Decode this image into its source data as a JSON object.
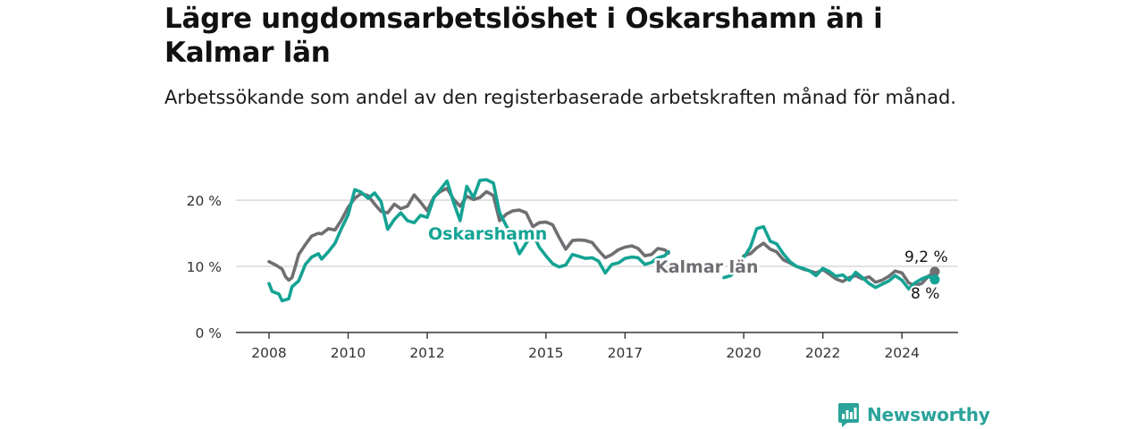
{
  "header": {
    "title": "Lägre ungdomsarbetslöshet i Oskarshamn än i Kalmar län",
    "subtitle": "Arbetssökande som andel av den registerbaserade arbetskraften månad för månad."
  },
  "brand": {
    "name": "Newsworthy",
    "icon": "newsworthy-bar-chart-icon",
    "color": "#2aa39a"
  },
  "chart_data": {
    "type": "line",
    "title": "Lägre ungdomsarbetslöshet i Oskarshamn än i Kalmar län",
    "subtitle": "Arbetssökande som andel av den registerbaserade arbetskraften månad för månad.",
    "xlabel": "",
    "ylabel": "",
    "x_range": [
      2008,
      2024.9
    ],
    "ylim": [
      0,
      23
    ],
    "y_ticks": [
      {
        "value": 0,
        "label": "0 %"
      },
      {
        "value": 10,
        "label": "10 %"
      },
      {
        "value": 20,
        "label": "20 %"
      }
    ],
    "x_ticks": [
      {
        "value": 2008,
        "label": "2008"
      },
      {
        "value": 2010,
        "label": "2010"
      },
      {
        "value": 2012,
        "label": "2012"
      },
      {
        "value": 2015,
        "label": "2015"
      },
      {
        "value": 2017,
        "label": "2017"
      },
      {
        "value": 2020,
        "label": "2020"
      },
      {
        "value": 2022,
        "label": "2022"
      },
      {
        "value": 2024,
        "label": "2024"
      }
    ],
    "grid": true,
    "legend": "direct labels on lines",
    "series": [
      {
        "name": "Kalmar län",
        "color": "#6f6f73",
        "end_label": "9,2 %",
        "segments": [
          [
            [
              2008.0,
              10.7
            ],
            [
              2008.17,
              10.2
            ],
            [
              2008.33,
              9.6
            ],
            [
              2008.42,
              8.4
            ],
            [
              2008.5,
              7.9
            ],
            [
              2008.58,
              8.3
            ],
            [
              2008.67,
              10.1
            ],
            [
              2008.75,
              11.8
            ],
            [
              2008.92,
              13.3
            ],
            [
              2009.08,
              14.6
            ],
            [
              2009.25,
              15.0
            ],
            [
              2009.33,
              14.9
            ],
            [
              2009.5,
              15.7
            ],
            [
              2009.67,
              15.5
            ],
            [
              2009.83,
              17.0
            ],
            [
              2010.0,
              18.9
            ],
            [
              2010.17,
              20.3
            ],
            [
              2010.33,
              21.0
            ],
            [
              2010.5,
              20.7
            ],
            [
              2010.67,
              19.4
            ],
            [
              2010.83,
              18.3
            ],
            [
              2011.0,
              18.1
            ],
            [
              2011.17,
              19.4
            ],
            [
              2011.33,
              18.7
            ],
            [
              2011.5,
              19.1
            ],
            [
              2011.67,
              20.8
            ],
            [
              2011.83,
              19.7
            ],
            [
              2012.0,
              18.4
            ],
            [
              2012.17,
              20.5
            ],
            [
              2012.33,
              21.3
            ],
            [
              2012.5,
              21.8
            ],
            [
              2012.67,
              20.1
            ],
            [
              2012.83,
              19.1
            ],
            [
              2013.0,
              20.6
            ],
            [
              2013.17,
              20.1
            ],
            [
              2013.33,
              20.4
            ],
            [
              2013.5,
              21.3
            ],
            [
              2013.67,
              20.7
            ],
            [
              2013.83,
              16.9
            ],
            [
              2014.0,
              17.9
            ],
            [
              2014.17,
              18.4
            ],
            [
              2014.33,
              18.5
            ],
            [
              2014.5,
              18.1
            ],
            [
              2014.67,
              16.0
            ],
            [
              2014.83,
              16.6
            ],
            [
              2015.0,
              16.7
            ],
            [
              2015.17,
              16.3
            ],
            [
              2015.33,
              14.4
            ],
            [
              2015.5,
              12.6
            ],
            [
              2015.67,
              13.9
            ],
            [
              2015.83,
              14.0
            ],
            [
              2016.0,
              13.9
            ],
            [
              2016.17,
              13.6
            ],
            [
              2016.33,
              12.4
            ],
            [
              2016.5,
              11.3
            ],
            [
              2016.67,
              11.8
            ],
            [
              2016.83,
              12.5
            ],
            [
              2017.0,
              12.9
            ],
            [
              2017.17,
              13.1
            ],
            [
              2017.33,
              12.7
            ],
            [
              2017.5,
              11.6
            ],
            [
              2017.67,
              11.8
            ],
            [
              2017.83,
              12.7
            ],
            [
              2018.0,
              12.5
            ],
            [
              2018.1,
              12.0
            ]
          ],
          [
            [
              2020.0,
              11.6
            ],
            [
              2020.17,
              11.9
            ],
            [
              2020.33,
              12.8
            ],
            [
              2020.5,
              13.5
            ],
            [
              2020.67,
              12.6
            ],
            [
              2020.83,
              12.2
            ],
            [
              2021.0,
              11.0
            ],
            [
              2021.17,
              10.5
            ],
            [
              2021.33,
              10.0
            ],
            [
              2021.5,
              9.6
            ],
            [
              2021.67,
              9.3
            ],
            [
              2021.83,
              9.0
            ],
            [
              2022.0,
              9.5
            ],
            [
              2022.17,
              8.8
            ],
            [
              2022.33,
              8.1
            ],
            [
              2022.5,
              7.7
            ],
            [
              2022.67,
              8.3
            ],
            [
              2022.83,
              8.6
            ],
            [
              2023.0,
              8.1
            ],
            [
              2023.17,
              8.4
            ],
            [
              2023.33,
              7.6
            ],
            [
              2023.5,
              7.9
            ],
            [
              2023.67,
              8.5
            ],
            [
              2023.83,
              9.3
            ],
            [
              2024.0,
              9.0
            ],
            [
              2024.17,
              7.5
            ],
            [
              2024.33,
              7.1
            ],
            [
              2024.5,
              7.4
            ],
            [
              2024.67,
              8.5
            ],
            [
              2024.83,
              9.2
            ]
          ]
        ]
      },
      {
        "name": "Oskarshamn",
        "color": "#14a394",
        "end_label": "8 %",
        "segments": [
          [
            [
              2008.0,
              7.4
            ],
            [
              2008.08,
              6.2
            ],
            [
              2008.25,
              5.8
            ],
            [
              2008.33,
              4.8
            ],
            [
              2008.5,
              5.1
            ],
            [
              2008.58,
              6.9
            ],
            [
              2008.75,
              7.8
            ],
            [
              2008.92,
              10.3
            ],
            [
              2009.08,
              11.4
            ],
            [
              2009.25,
              11.9
            ],
            [
              2009.33,
              11.1
            ],
            [
              2009.5,
              12.2
            ],
            [
              2009.67,
              13.5
            ],
            [
              2009.83,
              15.7
            ],
            [
              2010.0,
              17.8
            ],
            [
              2010.17,
              21.6
            ],
            [
              2010.33,
              21.2
            ],
            [
              2010.5,
              20.3
            ],
            [
              2010.67,
              21.1
            ],
            [
              2010.83,
              19.8
            ],
            [
              2011.0,
              15.6
            ],
            [
              2011.17,
              17.1
            ],
            [
              2011.33,
              18.1
            ],
            [
              2011.5,
              16.9
            ],
            [
              2011.67,
              16.6
            ],
            [
              2011.83,
              17.7
            ],
            [
              2012.0,
              17.4
            ],
            [
              2012.17,
              20.4
            ],
            [
              2012.33,
              21.6
            ],
            [
              2012.5,
              22.9
            ],
            [
              2012.67,
              19.6
            ],
            [
              2012.83,
              16.9
            ],
            [
              2013.0,
              22.1
            ],
            [
              2013.17,
              20.4
            ],
            [
              2013.33,
              23.0
            ],
            [
              2013.5,
              23.1
            ],
            [
              2013.67,
              22.6
            ],
            [
              2013.83,
              18.1
            ],
            [
              2014.0,
              16.1
            ],
            [
              2014.17,
              14.3
            ],
            [
              2014.33,
              11.9
            ],
            [
              2014.5,
              13.5
            ],
            [
              2014.67,
              15.0
            ],
            [
              2014.83,
              12.9
            ],
            [
              2015.0,
              11.6
            ],
            [
              2015.17,
              10.4
            ],
            [
              2015.33,
              9.9
            ],
            [
              2015.5,
              10.2
            ],
            [
              2015.67,
              11.8
            ],
            [
              2015.83,
              11.5
            ],
            [
              2016.0,
              11.2
            ],
            [
              2016.17,
              11.3
            ],
            [
              2016.33,
              10.8
            ],
            [
              2016.5,
              9.0
            ],
            [
              2016.67,
              10.3
            ],
            [
              2016.83,
              10.5
            ],
            [
              2017.0,
              11.2
            ],
            [
              2017.17,
              11.4
            ],
            [
              2017.33,
              11.3
            ],
            [
              2017.5,
              10.3
            ],
            [
              2017.67,
              10.6
            ],
            [
              2017.83,
              11.3
            ],
            [
              2018.0,
              11.6
            ],
            [
              2018.1,
              12.2
            ]
          ],
          [
            [
              2019.5,
              8.3
            ],
            [
              2019.67,
              8.6
            ],
            [
              2019.83,
              9.4
            ],
            [
              2020.0,
              11.3
            ],
            [
              2020.17,
              12.9
            ],
            [
              2020.33,
              15.7
            ],
            [
              2020.5,
              16.0
            ],
            [
              2020.67,
              13.8
            ],
            [
              2020.83,
              13.4
            ],
            [
              2021.0,
              11.9
            ],
            [
              2021.17,
              10.7
            ],
            [
              2021.33,
              10.0
            ],
            [
              2021.5,
              9.7
            ],
            [
              2021.67,
              9.3
            ],
            [
              2021.83,
              8.6
            ],
            [
              2022.0,
              9.7
            ],
            [
              2022.17,
              9.2
            ],
            [
              2022.33,
              8.5
            ],
            [
              2022.5,
              8.7
            ],
            [
              2022.67,
              7.9
            ],
            [
              2022.83,
              9.1
            ],
            [
              2023.0,
              8.3
            ],
            [
              2023.17,
              7.4
            ],
            [
              2023.33,
              6.8
            ],
            [
              2023.5,
              7.3
            ],
            [
              2023.67,
              7.8
            ],
            [
              2023.83,
              8.6
            ],
            [
              2024.0,
              7.9
            ],
            [
              2024.17,
              6.6
            ],
            [
              2024.33,
              7.5
            ],
            [
              2024.5,
              8.1
            ],
            [
              2024.67,
              8.5
            ],
            [
              2024.83,
              8.0
            ]
          ]
        ]
      }
    ]
  }
}
